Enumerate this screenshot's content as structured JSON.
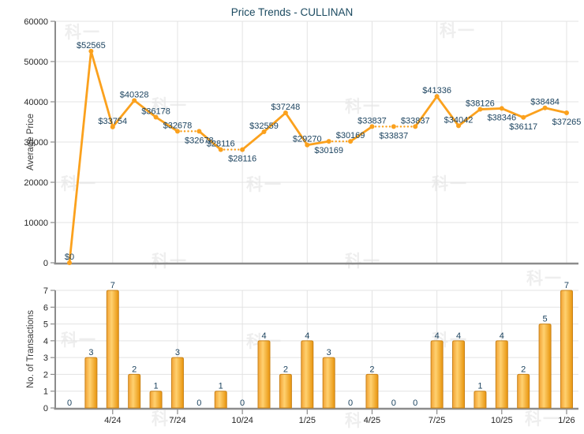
{
  "title": "Price Trends - CULLINAN",
  "watermark": {
    "text": "科一"
  },
  "colors": {
    "line_orange": "#FBA11D",
    "bar_fill_light": "#FFD170",
    "bar_fill_dark": "#E8940C",
    "bar_border": "#C9831B",
    "label_navy": "#1D4460",
    "title_teal": "#1B4A60",
    "grid_gray": "#E3E3E3",
    "axis_gray": "#8C8C8C",
    "tick_text": "#262626"
  },
  "chart_data": [
    {
      "type": "line",
      "title": "Price Trends - CULLINAN",
      "ylabel": "Average Price",
      "ylim": [
        0,
        60000
      ],
      "y_ticks": [
        0,
        10000,
        20000,
        30000,
        40000,
        50000,
        60000
      ],
      "grid": true,
      "x_months": [
        "2/24",
        "3/24",
        "4/24",
        "5/24",
        "6/24",
        "7/24",
        "8/24",
        "9/24",
        "10/24",
        "11/24",
        "12/24",
        "1/25",
        "2/25",
        "3/25",
        "4/25",
        "5/25",
        "6/25",
        "7/25",
        "8/25",
        "9/25",
        "10/25",
        "11/25",
        "12/25",
        "1/26"
      ],
      "x_tick_labels": [
        "4/24",
        "7/24",
        "10/24",
        "1/25",
        "4/25",
        "7/25",
        "10/25",
        "1/26"
      ],
      "x_tick_month_indices": [
        2,
        5,
        8,
        11,
        14,
        17,
        20,
        23
      ],
      "values": [
        0,
        52565,
        33754,
        40328,
        36178,
        32678,
        32678,
        28116,
        28116,
        32559,
        37248,
        29270,
        30169,
        30169,
        33837,
        33837,
        33837,
        41336,
        34042,
        38126,
        38346,
        36117,
        38484,
        37265
      ],
      "point_labels": [
        "$0",
        "$52565",
        "$33754",
        "$40328",
        "$36178",
        "$32678",
        "$32678",
        "$28116",
        "$28116",
        "$32559",
        "$37248",
        "$29270",
        "$30169",
        "$30169",
        "$33837",
        "$33837",
        "$33837",
        "$41336",
        "$34042",
        "$38126",
        "$38346",
        "$36117",
        "$38484",
        "$37265"
      ],
      "label_position": [
        "above",
        "above",
        "above",
        "above",
        "above",
        "above",
        "below",
        "above",
        "below",
        "above",
        "above",
        "above",
        "below",
        "above",
        "above",
        "below",
        "above",
        "above",
        "above",
        "above",
        "below",
        "below",
        "above",
        "below"
      ],
      "dotted_segment_target_indices": [
        6,
        8,
        13,
        15,
        16
      ],
      "legend": "none"
    },
    {
      "type": "bar",
      "ylabel": "No. of Transactions",
      "ylim": [
        0,
        7
      ],
      "y_ticks": [
        0,
        1,
        2,
        3,
        4,
        5,
        6,
        7
      ],
      "grid": true,
      "categories": [
        "2/24",
        "3/24",
        "4/24",
        "5/24",
        "6/24",
        "7/24",
        "8/24",
        "9/24",
        "10/24",
        "11/24",
        "12/24",
        "1/25",
        "2/25",
        "3/25",
        "4/25",
        "5/25",
        "6/25",
        "7/25",
        "8/25",
        "9/25",
        "10/25",
        "11/25",
        "12/25",
        "1/26"
      ],
      "x_tick_labels": [
        "4/24",
        "7/24",
        "10/24",
        "1/25",
        "4/25",
        "7/25",
        "10/25",
        "1/26"
      ],
      "x_tick_month_indices": [
        2,
        5,
        8,
        11,
        14,
        17,
        20,
        23
      ],
      "values": [
        0,
        3,
        7,
        2,
        1,
        3,
        0,
        1,
        0,
        4,
        2,
        4,
        3,
        0,
        2,
        0,
        0,
        4,
        4,
        1,
        4,
        2,
        5,
        7
      ],
      "legend": "none"
    }
  ]
}
